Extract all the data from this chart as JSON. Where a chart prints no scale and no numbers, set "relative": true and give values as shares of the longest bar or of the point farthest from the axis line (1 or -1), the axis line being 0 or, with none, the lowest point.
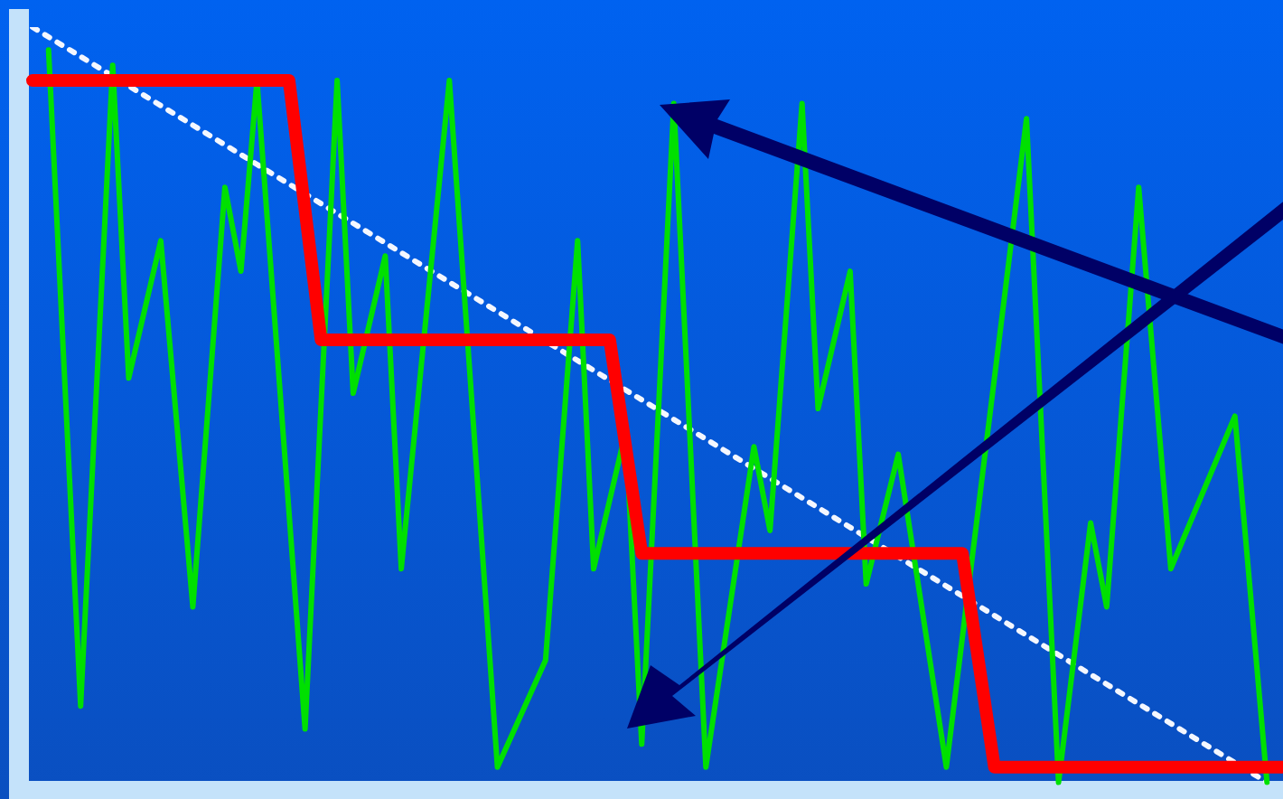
{
  "chart_data": {
    "type": "line",
    "relative": true,
    "marker": "none",
    "categories": [
      null,
      null,
      null,
      null,
      null,
      null,
      null,
      null,
      null,
      null,
      null,
      null,
      null,
      null,
      null,
      null,
      null,
      null,
      null,
      null,
      null,
      null,
      null,
      null,
      null,
      null,
      null,
      null,
      null,
      null,
      null,
      null,
      null,
      null,
      null,
      null,
      null,
      null,
      null,
      null,
      null,
      null,
      null,
      null,
      null,
      null,
      null,
      null,
      null,
      null,
      null,
      null,
      null,
      null,
      null,
      null,
      null,
      null,
      null,
      null,
      null,
      null,
      null,
      null,
      null,
      null,
      null,
      null,
      null,
      null,
      null,
      null,
      null,
      null,
      null,
      null,
      null,
      null,
      null
    ],
    "series": [
      {
        "type": "step",
        "color": "#ff0000",
        "values": [
          0.93,
          null,
          null,
          null,
          null,
          null,
          null,
          null,
          null,
          null,
          null,
          null,
          null,
          null,
          null,
          null,
          0.93,
          null,
          0.59,
          null,
          null,
          null,
          null,
          null,
          null,
          null,
          null,
          null,
          null,
          null,
          null,
          null,
          null,
          null,
          null,
          null,
          0.59,
          null,
          0.31,
          null,
          null,
          null,
          null,
          null,
          null,
          null,
          null,
          null,
          null,
          null,
          null,
          null,
          null,
          null,
          null,
          null,
          null,
          null,
          0.31,
          null,
          0.03,
          null,
          null,
          null,
          null,
          null,
          null,
          null,
          null,
          null,
          null,
          null,
          null,
          null,
          null,
          null,
          null,
          null,
          0.03
        ]
      },
      {
        "color": "#00e000",
        "values": [
          null,
          0.97,
          null,
          0.11,
          null,
          0.95,
          0.54,
          null,
          0.72,
          null,
          0.24,
          null,
          0.79,
          0.68,
          0.93,
          null,
          null,
          0.08,
          null,
          0.93,
          0.52,
          null,
          0.7,
          0.29,
          null,
          null,
          0.93,
          null,
          null,
          0.03,
          null,
          null,
          0.17,
          null,
          0.72,
          0.29,
          null,
          0.47,
          0.06,
          null,
          0.9,
          null,
          0.03,
          null,
          null,
          0.45,
          0.34,
          null,
          0.9,
          0.5,
          null,
          0.68,
          0.27,
          null,
          0.44,
          null,
          null,
          0.03,
          null,
          null,
          null,
          null,
          0.88,
          null,
          0.01,
          null,
          0.35,
          0.24,
          null,
          0.79,
          null,
          0.29,
          null,
          null,
          null,
          0.49,
          null,
          0.01,
          null
        ]
      },
      {
        "color": "#f4f7ff",
        "line_style": "dotted",
        "values": [
          1,
          null,
          null,
          null,
          null,
          null,
          null,
          null,
          null,
          null,
          null,
          null,
          null,
          null,
          null,
          null,
          null,
          null,
          null,
          null,
          null,
          null,
          null,
          null,
          null,
          null,
          null,
          null,
          null,
          null,
          null,
          null,
          null,
          null,
          null,
          null,
          null,
          null,
          null,
          null,
          null,
          null,
          null,
          null,
          null,
          null,
          null,
          null,
          null,
          null,
          null,
          null,
          null,
          null,
          null,
          null,
          null,
          null,
          null,
          null,
          null,
          null,
          null,
          null,
          null,
          null,
          null,
          null,
          null,
          null,
          null,
          null,
          null,
          null,
          null,
          null,
          null,
          0.01,
          null
        ]
      }
    ]
  }
}
